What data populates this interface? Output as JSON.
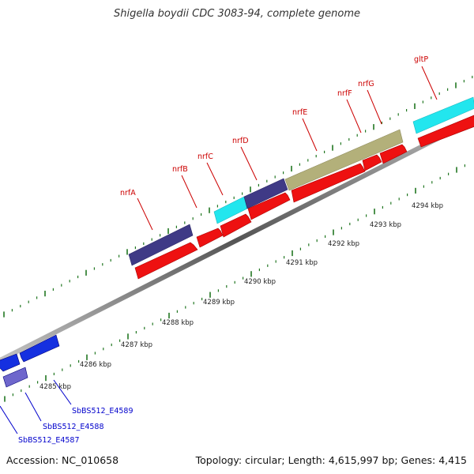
{
  "title": "Shigella boydii CDC 3083-94, complete genome",
  "accession_text": "Accession: NC_010658",
  "summary_text": "Topology: circular; Length: 4,615,997 bp; Genes: 4,415",
  "colors": {
    "backbone": "#888888",
    "tick": "#227722",
    "gene_label": "#cc0000",
    "locus_label": "#0000cc",
    "forward_cds": "#ee1111",
    "navy_block": "#3f3a86",
    "olive_block": "#b3b07a",
    "cyan_block": "#22e6ee",
    "blue_cds": "#1530e0",
    "light_blue_cds": "#6e66cc"
  },
  "scale_labels": [
    "4285 kbp",
    "4286 kbp",
    "4287 kbp",
    "4288 kbp",
    "4289 kbp",
    "4290 kbp",
    "4291 kbp",
    "4292 kbp",
    "4293 kbp",
    "4294 kbp"
  ],
  "gene_labels": [
    "nrfA",
    "nrfB",
    "nrfC",
    "nrfD",
    "nrfE",
    "nrfF",
    "nrfG",
    "gltP"
  ],
  "locus_labels": [
    "SbBS512_E4589",
    "SbBS512_E4588",
    "SbBS512_E4587"
  ]
}
